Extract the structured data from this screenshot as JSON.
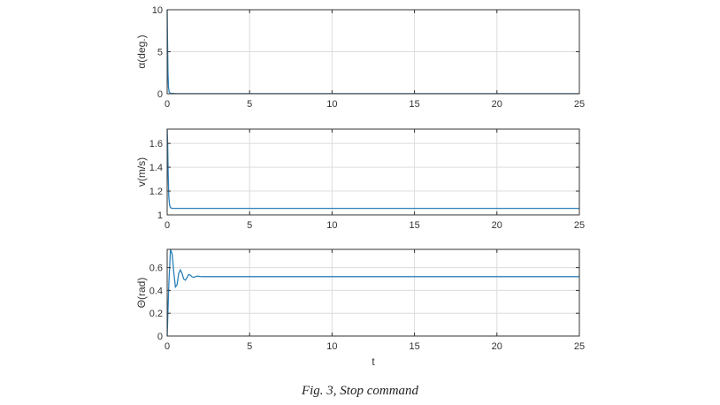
{
  "caption": "Fig. 3, Stop command",
  "colors": {
    "line": "#2a7fb8",
    "grid": "#dcdcdc",
    "axis": "#333333"
  },
  "chart_data": [
    {
      "type": "line",
      "xlabel": "",
      "ylabel": "α(deg.)",
      "xlim": [
        0,
        25
      ],
      "ylim": [
        0,
        10
      ],
      "xticks": [
        0,
        5,
        10,
        15,
        20,
        25
      ],
      "yticks": [
        0,
        5,
        10
      ],
      "grid": true,
      "series": [
        {
          "x": [
            0,
            0.02,
            0.05,
            0.08,
            0.12,
            0.2,
            0.5,
            1,
            5,
            10,
            15,
            20,
            25
          ],
          "y": [
            10,
            6.5,
            2.5,
            0.8,
            0.2,
            0.05,
            0.02,
            0.01,
            0.01,
            0.01,
            0.01,
            0.01,
            0.01
          ]
        }
      ]
    },
    {
      "type": "line",
      "xlabel": "",
      "ylabel": "v(m/s)",
      "xlim": [
        0,
        25
      ],
      "ylim": [
        1,
        1.72
      ],
      "xticks": [
        0,
        5,
        10,
        15,
        20,
        25
      ],
      "yticks": [
        1,
        1.2,
        1.4,
        1.6
      ],
      "grid": true,
      "series": [
        {
          "x": [
            0,
            0.03,
            0.06,
            0.1,
            0.15,
            0.2,
            0.3,
            0.5,
            1,
            5,
            10,
            15,
            20,
            25
          ],
          "y": [
            1.72,
            1.6,
            1.35,
            1.15,
            1.08,
            1.06,
            1.055,
            1.055,
            1.055,
            1.055,
            1.055,
            1.055,
            1.055,
            1.055
          ]
        }
      ]
    },
    {
      "type": "line",
      "xlabel": "t",
      "ylabel": "Θ(rad)",
      "xlim": [
        0,
        25
      ],
      "ylim": [
        0,
        0.76
      ],
      "xticks": [
        0,
        5,
        10,
        15,
        20,
        25
      ],
      "yticks": [
        0,
        0.2,
        0.4,
        0.6
      ],
      "grid": true,
      "series": [
        {
          "x": [
            0,
            0.1,
            0.2,
            0.3,
            0.4,
            0.5,
            0.6,
            0.7,
            0.8,
            0.9,
            1.0,
            1.1,
            1.2,
            1.3,
            1.4,
            1.5,
            1.6,
            1.7,
            1.8,
            2.0,
            2.2,
            2.5,
            3,
            5,
            10,
            15,
            20,
            25
          ],
          "y": [
            0,
            0.45,
            0.76,
            0.72,
            0.56,
            0.43,
            0.45,
            0.55,
            0.58,
            0.55,
            0.5,
            0.49,
            0.51,
            0.54,
            0.535,
            0.52,
            0.515,
            0.52,
            0.525,
            0.522,
            0.521,
            0.521,
            0.521,
            0.521,
            0.521,
            0.521,
            0.521,
            0.521
          ]
        }
      ]
    }
  ]
}
